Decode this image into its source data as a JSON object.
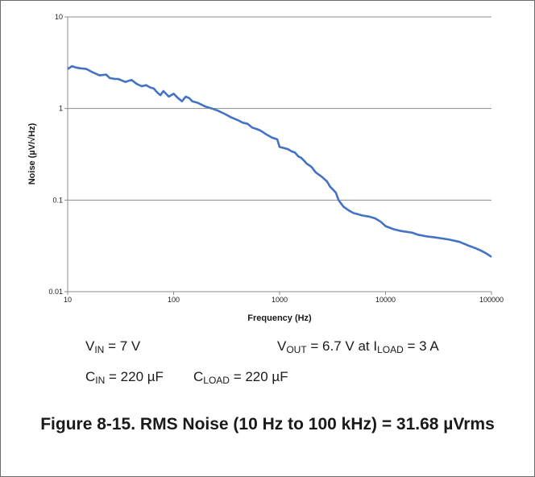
{
  "chart_data": {
    "type": "line",
    "title": "",
    "xlabel": "Frequency (Hz)",
    "ylabel": "Noise (µV/√Hz)",
    "xscale": "log",
    "yscale": "log",
    "xlim": [
      10,
      100000
    ],
    "ylim": [
      0.01,
      10
    ],
    "x_ticks": [
      10,
      100,
      1000,
      10000,
      100000
    ],
    "x_tick_labels": [
      "10",
      "100",
      "1000",
      "10000",
      "100000"
    ],
    "y_ticks": [
      0.01,
      0.1,
      1,
      10
    ],
    "y_tick_labels": [
      "0.01",
      "0.1",
      "1",
      "10"
    ],
    "grid": "horizontal",
    "legend": "none",
    "series_color": "#4472c4",
    "series": [
      {
        "x": [
          10,
          11,
          12,
          13,
          15,
          17,
          20,
          23,
          25,
          28,
          30,
          35,
          40,
          45,
          50,
          55,
          60,
          65,
          70,
          75,
          80,
          90,
          100,
          110,
          120,
          130,
          140,
          150,
          170,
          200,
          230,
          260,
          300,
          350,
          400,
          450,
          500,
          550,
          600,
          650,
          700,
          750,
          800,
          850,
          900,
          950,
          1000,
          1100,
          1200,
          1300,
          1400,
          1500,
          1600,
          1700,
          1800,
          1900,
          2000,
          2200,
          2500,
          2800,
          3000,
          3200,
          3400,
          3600,
          4000,
          4500,
          5000,
          5500,
          6000,
          7000,
          8000,
          9000,
          10000,
          12000,
          14000,
          16000,
          18000,
          20000,
          25000,
          30000,
          35000,
          40000,
          50000,
          60000,
          70000,
          80000,
          90000,
          100000
        ],
        "y": [
          2.7,
          2.9,
          2.8,
          2.75,
          2.7,
          2.5,
          2.3,
          2.35,
          2.15,
          2.1,
          2.1,
          1.95,
          2.05,
          1.85,
          1.75,
          1.8,
          1.7,
          1.65,
          1.5,
          1.4,
          1.55,
          1.35,
          1.45,
          1.3,
          1.2,
          1.35,
          1.3,
          1.2,
          1.15,
          1.05,
          1.0,
          0.95,
          0.88,
          0.8,
          0.75,
          0.7,
          0.68,
          0.62,
          0.6,
          0.58,
          0.55,
          0.52,
          0.5,
          0.48,
          0.47,
          0.46,
          0.38,
          0.37,
          0.36,
          0.34,
          0.33,
          0.3,
          0.29,
          0.27,
          0.25,
          0.24,
          0.23,
          0.2,
          0.18,
          0.16,
          0.14,
          0.13,
          0.12,
          0.1,
          0.085,
          0.077,
          0.072,
          0.07,
          0.068,
          0.066,
          0.063,
          0.058,
          0.052,
          0.048,
          0.046,
          0.045,
          0.044,
          0.042,
          0.04,
          0.039,
          0.038,
          0.037,
          0.035,
          0.032,
          0.03,
          0.028,
          0.026,
          0.024
        ]
      }
    ]
  },
  "conditions": {
    "vin_symbol": "V",
    "vin_sub": "IN",
    "vin_value": " = 7 V",
    "vout_symbol": "V",
    "vout_sub": "OUT",
    "vout_mid": " = 6.7 V at I",
    "iload_sub": "LOAD",
    "vout_value": " = 3 A",
    "cin_symbol": "C",
    "cin_sub": "IN",
    "cin_value": " = 220 µF",
    "cload_symbol": "C",
    "cload_sub": "LOAD",
    "cload_value": " = 220 µF"
  },
  "caption": "Figure 8-15. RMS Noise (10 Hz to 100 kHz) = 31.68 µVrms"
}
